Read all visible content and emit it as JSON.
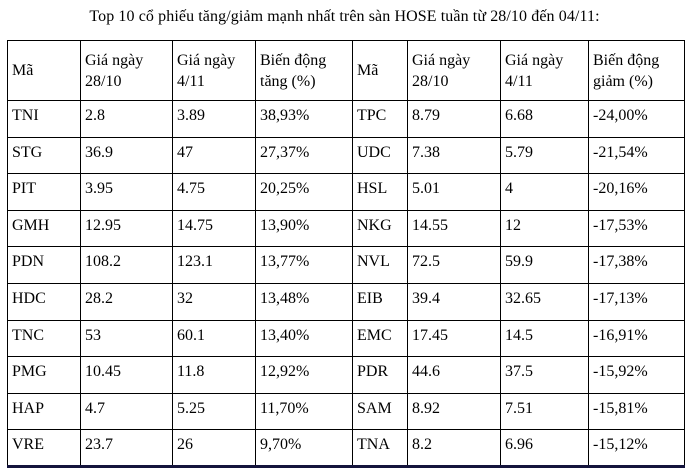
{
  "title": "Top 10 cổ phiếu tăng/giảm mạnh nhất trên sàn HOSE tuần từ 28/10 đến 04/11:",
  "table": {
    "headers": [
      "Mã",
      "Giá ngày 28/10",
      "Giá ngày 4/11",
      "Biến động tăng (%)",
      "Mã",
      "Giá ngày 28/10",
      "Giá ngày 4/11",
      "Biến động giảm (%)"
    ],
    "rows": [
      [
        "TNI",
        "2.8",
        "3.89",
        "38,93%",
        "TPC",
        "8.79",
        "6.68",
        "-24,00%"
      ],
      [
        "STG",
        "36.9",
        "47",
        "27,37%",
        "UDC",
        "7.38",
        "5.79",
        "-21,54%"
      ],
      [
        "PIT",
        "3.95",
        "4.75",
        "20,25%",
        "HSL",
        "5.01",
        "4",
        "-20,16%"
      ],
      [
        "GMH",
        "12.95",
        "14.75",
        "13,90%",
        "NKG",
        "14.55",
        "12",
        "-17,53%"
      ],
      [
        "PDN",
        "108.2",
        "123.1",
        "13,77%",
        "NVL",
        "72.5",
        "59.9",
        "-17,38%"
      ],
      [
        "HDC",
        "28.2",
        "32",
        "13,48%",
        "EIB",
        "39.4",
        "32.65",
        "-17,13%"
      ],
      [
        "TNC",
        "53",
        "60.1",
        "13,40%",
        "EMC",
        "17.45",
        "14.5",
        "-16,91%"
      ],
      [
        "PMG",
        "10.45",
        "11.8",
        "12,92%",
        "PDR",
        "44.6",
        "37.5",
        "-15,92%"
      ],
      [
        "HAP",
        "4.7",
        "5.25",
        "11,70%",
        "SAM",
        "8.92",
        "7.51",
        "-15,81%"
      ],
      [
        "VRE",
        "23.7",
        "26",
        "9,70%",
        "TNA",
        "8.2",
        "6.96",
        "-15,12%"
      ]
    ]
  },
  "colors": {
    "border": "#000000",
    "bottom_bar": "#14143c",
    "text": "#000000",
    "background": "#ffffff"
  }
}
